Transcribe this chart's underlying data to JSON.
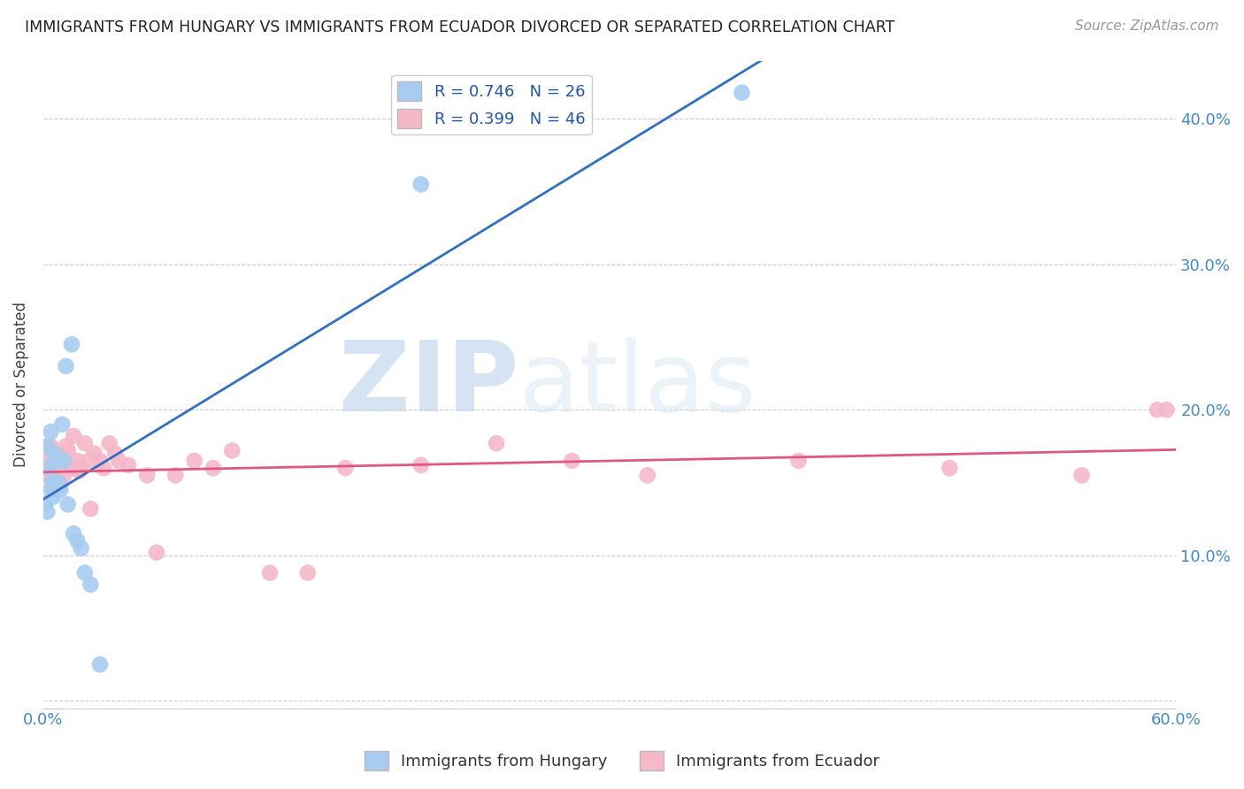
{
  "title": "IMMIGRANTS FROM HUNGARY VS IMMIGRANTS FROM ECUADOR DIVORCED OR SEPARATED CORRELATION CHART",
  "source": "Source: ZipAtlas.com",
  "ylabel": "Divorced or Separated",
  "xlabel": "",
  "xlim": [
    0.0,
    0.6
  ],
  "ylim": [
    -0.005,
    0.44
  ],
  "xticks": [
    0.0,
    0.1,
    0.2,
    0.3,
    0.4,
    0.5,
    0.6
  ],
  "yticks": [
    0.0,
    0.1,
    0.2,
    0.3,
    0.4
  ],
  "hungary_R": 0.746,
  "hungary_N": 26,
  "ecuador_R": 0.399,
  "ecuador_N": 46,
  "hungary_color": "#A8CCF0",
  "ecuador_color": "#F5B8C8",
  "hungary_line_color": "#3070C0",
  "ecuador_line_color": "#E05880",
  "watermark_zip": "ZIP",
  "watermark_atlas": "atlas",
  "hungary_x": [
    0.001,
    0.002,
    0.002,
    0.003,
    0.004,
    0.004,
    0.005,
    0.005,
    0.006,
    0.006,
    0.007,
    0.008,
    0.009,
    0.01,
    0.011,
    0.012,
    0.013,
    0.015,
    0.016,
    0.018,
    0.02,
    0.022,
    0.025,
    0.03,
    0.2,
    0.37
  ],
  "hungary_y": [
    0.135,
    0.13,
    0.175,
    0.16,
    0.145,
    0.185,
    0.15,
    0.14,
    0.17,
    0.145,
    0.165,
    0.15,
    0.145,
    0.19,
    0.165,
    0.23,
    0.135,
    0.245,
    0.115,
    0.11,
    0.105,
    0.088,
    0.08,
    0.025,
    0.355,
    0.418
  ],
  "ecuador_x": [
    0.001,
    0.002,
    0.003,
    0.004,
    0.005,
    0.006,
    0.007,
    0.008,
    0.009,
    0.01,
    0.011,
    0.012,
    0.013,
    0.015,
    0.016,
    0.018,
    0.019,
    0.02,
    0.022,
    0.024,
    0.025,
    0.027,
    0.03,
    0.032,
    0.035,
    0.038,
    0.04,
    0.045,
    0.055,
    0.06,
    0.07,
    0.08,
    0.09,
    0.1,
    0.12,
    0.14,
    0.16,
    0.2,
    0.24,
    0.28,
    0.32,
    0.4,
    0.48,
    0.55,
    0.59,
    0.595
  ],
  "ecuador_y": [
    0.155,
    0.16,
    0.168,
    0.175,
    0.172,
    0.16,
    0.155,
    0.15,
    0.148,
    0.165,
    0.155,
    0.175,
    0.172,
    0.16,
    0.182,
    0.165,
    0.158,
    0.16,
    0.177,
    0.165,
    0.132,
    0.17,
    0.165,
    0.16,
    0.177,
    0.17,
    0.165,
    0.162,
    0.155,
    0.102,
    0.155,
    0.165,
    0.16,
    0.172,
    0.088,
    0.088,
    0.16,
    0.162,
    0.177,
    0.165,
    0.155,
    0.165,
    0.16,
    0.155,
    0.2,
    0.2
  ],
  "hungary_line_x": [
    0.0,
    0.6
  ],
  "ecuador_line_x": [
    0.0,
    0.6
  ]
}
